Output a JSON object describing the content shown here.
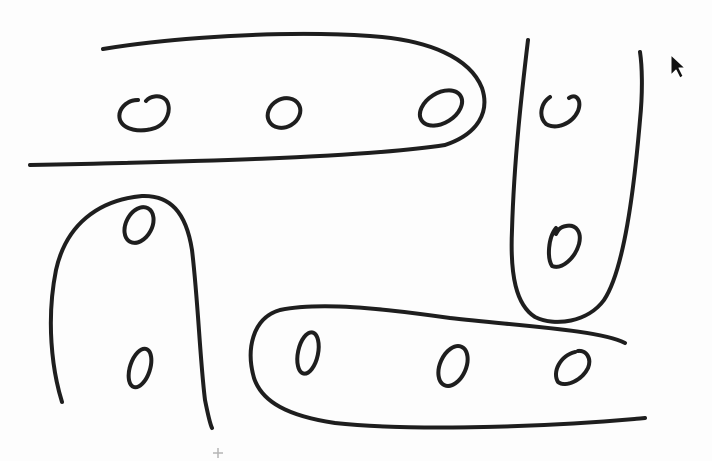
{
  "colors": {
    "background": "#fdfdfd",
    "ink": "#1e1e1e",
    "cursor_fill": "#111111",
    "cursor_outline": "#ffffff",
    "crosshair": "#b5b5b5"
  },
  "icons": {
    "pointer": "arrow-cursor-icon",
    "crosshair": "crosshair-plus-icon"
  },
  "groups": [
    {
      "name": "top-horizontal-group",
      "member_count": 3
    },
    {
      "name": "right-vertical-group",
      "member_count": 2
    },
    {
      "name": "left-vertical-group",
      "member_count": 2
    },
    {
      "name": "bottom-horizontal-group",
      "member_count": 3
    }
  ]
}
